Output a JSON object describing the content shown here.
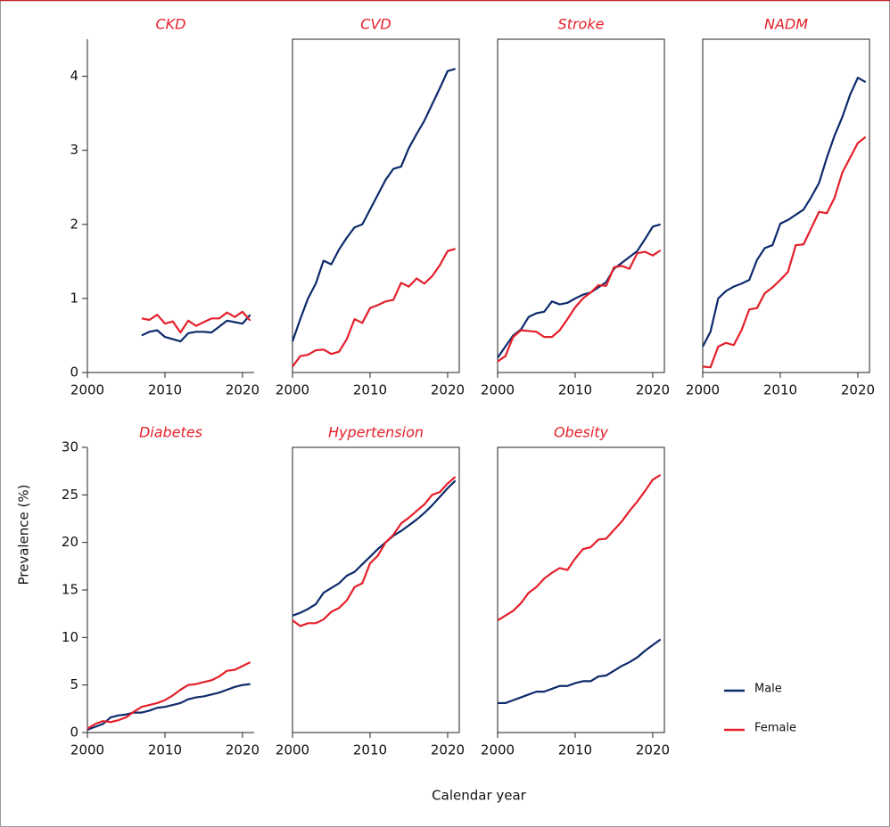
{
  "figure": {
    "y_label": "Prevalence (%)",
    "x_label": "Calendar year"
  },
  "chart_data": [
    {
      "type": "line",
      "title": "CKD",
      "x": [
        2007,
        2008,
        2009,
        2010,
        2011,
        2012,
        2013,
        2014,
        2015,
        2016,
        2017,
        2018,
        2019,
        2020,
        2021
      ],
      "xlim": [
        2000,
        2021.5
      ],
      "xticks": [
        2000,
        2010,
        2020
      ],
      "ylim": [
        0,
        4.5
      ],
      "yticks": [
        0,
        1,
        2,
        3,
        4
      ],
      "series": [
        {
          "name": "Male",
          "color": "#0d2a6b",
          "values": [
            0.5,
            0.55,
            0.57,
            0.48,
            0.45,
            0.42,
            0.53,
            0.55,
            0.55,
            0.54,
            0.62,
            0.7,
            0.68,
            0.66,
            0.78
          ]
        },
        {
          "name": "Female",
          "color": "#e3202a",
          "values": [
            0.73,
            0.71,
            0.78,
            0.66,
            0.69,
            0.54,
            0.7,
            0.63,
            0.68,
            0.73,
            0.73,
            0.81,
            0.75,
            0.82,
            0.7
          ]
        }
      ]
    },
    {
      "type": "line",
      "title": "CVD",
      "x": [
        2000,
        2001,
        2002,
        2003,
        2004,
        2005,
        2006,
        2007,
        2008,
        2009,
        2010,
        2011,
        2012,
        2013,
        2014,
        2015,
        2016,
        2017,
        2018,
        2019,
        2020,
        2021
      ],
      "xlim": [
        2000,
        2021.5
      ],
      "xticks": [
        2000,
        2010,
        2020
      ],
      "ylim": [
        0,
        4.5
      ],
      "series": [
        {
          "name": "Male",
          "color": "#0d2a6b",
          "values": [
            0.42,
            0.72,
            1.0,
            1.2,
            1.51,
            1.46,
            1.66,
            1.82,
            1.96,
            2.0,
            2.2,
            2.4,
            2.6,
            2.75,
            2.78,
            3.03,
            3.22,
            3.4,
            3.62,
            3.84,
            4.07,
            4.1
          ]
        },
        {
          "name": "Female",
          "color": "#e3202a",
          "values": [
            0.08,
            0.22,
            0.24,
            0.3,
            0.31,
            0.25,
            0.28,
            0.45,
            0.72,
            0.67,
            0.87,
            0.91,
            0.96,
            0.98,
            1.21,
            1.16,
            1.27,
            1.2,
            1.3,
            1.45,
            1.64,
            1.67
          ]
        }
      ]
    },
    {
      "type": "line",
      "title": "Stroke",
      "x": [
        2000,
        2001,
        2002,
        2003,
        2004,
        2005,
        2006,
        2007,
        2008,
        2009,
        2010,
        2011,
        2012,
        2013,
        2014,
        2015,
        2016,
        2017,
        2018,
        2019,
        2020,
        2021
      ],
      "xlim": [
        2000,
        2021.5
      ],
      "xticks": [
        2000,
        2010,
        2020
      ],
      "ylim": [
        0,
        4.5
      ],
      "series": [
        {
          "name": "Male",
          "color": "#0d2a6b",
          "values": [
            0.2,
            0.35,
            0.5,
            0.58,
            0.75,
            0.8,
            0.82,
            0.96,
            0.92,
            0.94,
            1.0,
            1.05,
            1.08,
            1.15,
            1.22,
            1.4,
            1.48,
            1.56,
            1.64,
            1.8,
            1.97,
            2.0
          ]
        },
        {
          "name": "Female",
          "color": "#e3202a",
          "values": [
            0.15,
            0.22,
            0.48,
            0.57,
            0.56,
            0.55,
            0.48,
            0.48,
            0.57,
            0.72,
            0.88,
            1.0,
            1.08,
            1.18,
            1.17,
            1.42,
            1.44,
            1.4,
            1.61,
            1.63,
            1.58,
            1.65
          ]
        }
      ]
    },
    {
      "type": "line",
      "title": "NADM",
      "x": [
        2000,
        2001,
        2002,
        2003,
        2004,
        2005,
        2006,
        2007,
        2008,
        2009,
        2010,
        2011,
        2012,
        2013,
        2014,
        2015,
        2016,
        2017,
        2018,
        2019,
        2020,
        2021
      ],
      "xlim": [
        2000,
        2021.5
      ],
      "xticks": [
        2000,
        2010,
        2020
      ],
      "ylim": [
        0,
        4.5
      ],
      "series": [
        {
          "name": "Male",
          "color": "#0d2a6b",
          "values": [
            0.35,
            0.55,
            1.0,
            1.1,
            1.16,
            1.2,
            1.25,
            1.52,
            1.68,
            1.72,
            2.01,
            2.06,
            2.13,
            2.2,
            2.37,
            2.56,
            2.9,
            3.2,
            3.45,
            3.75,
            3.98,
            3.92
          ]
        },
        {
          "name": "Female",
          "color": "#e3202a",
          "values": [
            0.08,
            0.07,
            0.35,
            0.4,
            0.37,
            0.57,
            0.85,
            0.87,
            1.07,
            1.15,
            1.25,
            1.36,
            1.72,
            1.73,
            1.95,
            2.17,
            2.15,
            2.36,
            2.7,
            2.9,
            3.1,
            3.18
          ]
        }
      ]
    },
    {
      "type": "line",
      "title": "Diabetes",
      "x": [
        2000,
        2001,
        2002,
        2003,
        2004,
        2005,
        2006,
        2007,
        2008,
        2009,
        2010,
        2011,
        2012,
        2013,
        2014,
        2015,
        2016,
        2017,
        2018,
        2019,
        2020,
        2021
      ],
      "xlim": [
        2000,
        2021.5
      ],
      "xticks": [
        2000,
        2010,
        2020
      ],
      "ylim": [
        0,
        30
      ],
      "yticks": [
        0,
        5,
        10,
        15,
        20,
        25,
        30
      ],
      "series": [
        {
          "name": "Male",
          "color": "#0d2a6b",
          "values": [
            0.3,
            0.6,
            0.9,
            1.6,
            1.8,
            1.9,
            2.1,
            2.1,
            2.3,
            2.6,
            2.7,
            2.9,
            3.1,
            3.5,
            3.7,
            3.8,
            4.0,
            4.2,
            4.5,
            4.8,
            5.0,
            5.1
          ]
        },
        {
          "name": "Female",
          "color": "#e3202a",
          "values": [
            0.4,
            0.9,
            1.2,
            1.1,
            1.3,
            1.6,
            2.2,
            2.7,
            2.9,
            3.1,
            3.4,
            3.9,
            4.5,
            5.0,
            5.1,
            5.3,
            5.5,
            5.9,
            6.5,
            6.6,
            7.0,
            7.4
          ]
        }
      ]
    },
    {
      "type": "line",
      "title": "Hypertension",
      "x": [
        2000,
        2001,
        2002,
        2003,
        2004,
        2005,
        2006,
        2007,
        2008,
        2009,
        2010,
        2011,
        2012,
        2013,
        2014,
        2015,
        2016,
        2017,
        2018,
        2019,
        2020,
        2021
      ],
      "xlim": [
        2000,
        2021.5
      ],
      "xticks": [
        2000,
        2010,
        2020
      ],
      "ylim": [
        0,
        30
      ],
      "series": [
        {
          "name": "Male",
          "color": "#0d2a6b",
          "values": [
            12.3,
            12.6,
            13.0,
            13.5,
            14.7,
            15.2,
            15.7,
            16.5,
            16.9,
            17.7,
            18.5,
            19.3,
            20.0,
            20.7,
            21.2,
            21.8,
            22.4,
            23.1,
            23.9,
            24.8,
            25.7,
            26.5
          ]
        },
        {
          "name": "Female",
          "color": "#e3202a",
          "values": [
            11.8,
            11.2,
            11.5,
            11.5,
            11.9,
            12.7,
            13.1,
            13.9,
            15.3,
            15.7,
            17.8,
            18.6,
            20.0,
            20.8,
            22.0,
            22.6,
            23.3,
            24.0,
            25.0,
            25.3,
            26.2,
            26.9
          ]
        }
      ]
    },
    {
      "type": "line",
      "title": "Obesity",
      "x": [
        2000,
        2001,
        2002,
        2003,
        2004,
        2005,
        2006,
        2007,
        2008,
        2009,
        2010,
        2011,
        2012,
        2013,
        2014,
        2015,
        2016,
        2017,
        2018,
        2019,
        2020,
        2021
      ],
      "xlim": [
        2000,
        2021.5
      ],
      "xticks": [
        2000,
        2010,
        2020
      ],
      "ylim": [
        0,
        30
      ],
      "series": [
        {
          "name": "Male",
          "color": "#0d2a6b",
          "values": [
            3.1,
            3.1,
            3.4,
            3.7,
            4.0,
            4.3,
            4.3,
            4.6,
            4.9,
            4.9,
            5.2,
            5.4,
            5.4,
            5.9,
            6.0,
            6.5,
            7.0,
            7.4,
            7.9,
            8.6,
            9.2,
            9.8
          ]
        },
        {
          "name": "Female",
          "color": "#e3202a",
          "values": [
            11.8,
            12.3,
            12.8,
            13.6,
            14.7,
            15.3,
            16.2,
            16.8,
            17.3,
            17.1,
            18.3,
            19.3,
            19.5,
            20.3,
            20.4,
            21.3,
            22.2,
            23.3,
            24.3,
            25.4,
            26.6,
            27.1
          ]
        }
      ]
    }
  ]
}
